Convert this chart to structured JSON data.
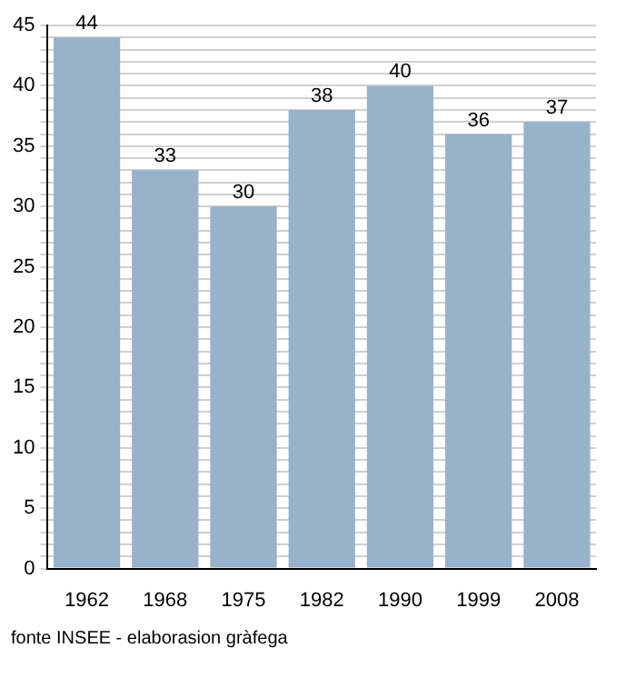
{
  "chart_data": {
    "type": "bar",
    "categories": [
      "1962",
      "1968",
      "1975",
      "1982",
      "1990",
      "1999",
      "2008"
    ],
    "values": [
      44,
      33,
      30,
      38,
      40,
      36,
      37
    ],
    "color": "#98b2cc",
    "data_labels": true,
    "ylim": [
      0,
      45
    ],
    "yticks": [
      0,
      {
        "value": 1,
        "label": null
      },
      {
        "value": 2,
        "label": null
      },
      {
        "value": 3,
        "label": null
      },
      {
        "value": 4,
        "label": null
      },
      5,
      {
        "value": 6,
        "label": null
      },
      {
        "value": 7,
        "label": null
      },
      {
        "value": 8,
        "label": null
      },
      {
        "value": 9,
        "label": null
      },
      10,
      {
        "value": 11,
        "label": null
      },
      {
        "value": 12,
        "label": null
      },
      {
        "value": 13,
        "label": null
      },
      {
        "value": 14,
        "label": null
      },
      15,
      {
        "value": 16,
        "label": null
      },
      {
        "value": 17,
        "label": null
      },
      {
        "value": 18,
        "label": null
      },
      {
        "value": 19,
        "label": null
      },
      20,
      {
        "value": 21,
        "label": null
      },
      {
        "value": 22,
        "label": null
      },
      {
        "value": 23,
        "label": null
      },
      {
        "value": 24,
        "label": null
      },
      25,
      {
        "value": 26,
        "label": null
      },
      {
        "value": 27,
        "label": null
      },
      {
        "value": 28,
        "label": null
      },
      {
        "value": 29,
        "label": null
      },
      30,
      {
        "value": 31,
        "label": null
      },
      {
        "value": 32,
        "label": null
      },
      {
        "value": 33,
        "label": null
      },
      {
        "value": 34,
        "label": null
      },
      35,
      {
        "value": 36,
        "label": null
      },
      {
        "value": 37,
        "label": null
      },
      {
        "value": 38,
        "label": null
      },
      {
        "value": 39,
        "label": null
      },
      40,
      {
        "value": 41,
        "label": null
      },
      {
        "value": 42,
        "label": null
      },
      {
        "value": 43,
        "label": null
      },
      {
        "value": 44,
        "label": null
      },
      45
    ],
    "grid": "y",
    "legend": false,
    "annotations": [
      "fonte INSEE - elaborasion gràfega"
    ]
  }
}
